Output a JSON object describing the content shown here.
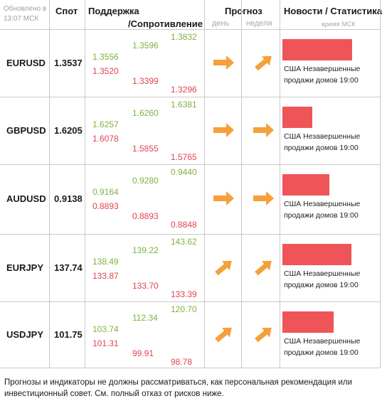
{
  "header": {
    "updated": "Обновлено в 13:07 МСК",
    "spot": "Спот",
    "support": "Поддержка",
    "resistance": "/Сопротивление",
    "forecast": "Прогноз",
    "day": "день",
    "week": "неделя",
    "news": "Новости / Статистика",
    "time_label": "время МСК"
  },
  "rows": [
    {
      "symbol": "EURUSD",
      "spot": "1.3537",
      "c1": [
        "1.3556",
        "1.3520"
      ],
      "c2": [
        "1.3596",
        "1.3399"
      ],
      "c3": [
        "1.3832",
        "1.3296"
      ],
      "day": "right",
      "week": "up-right",
      "news_level": 0.78,
      "news": "США Незавершенные продажи домов 19:00"
    },
    {
      "symbol": "GBPUSD",
      "spot": "1.6205",
      "c1": [
        "1.6257",
        "1.6078"
      ],
      "c2": [
        "1.6260",
        "1.5855"
      ],
      "c3": [
        "1.6381",
        "1.5765"
      ],
      "day": "right",
      "week": "right",
      "news_level": 0.22,
      "news": "США Незавершенные продажи домов 19:00"
    },
    {
      "symbol": "AUDUSD",
      "spot": "0.9138",
      "c1": [
        "0.9164",
        "0.8893"
      ],
      "c2": [
        "0.9280",
        "0.8893"
      ],
      "c3": [
        "0.9440",
        "0.8848"
      ],
      "day": "right",
      "week": "right",
      "news_level": 0.46,
      "news": "США Незавершенные продажи домов 19:00"
    },
    {
      "symbol": "EURJPY",
      "spot": "137.74",
      "c1": [
        "138.49",
        "133.87"
      ],
      "c2": [
        "139.22",
        "133.70"
      ],
      "c3": [
        "143.62",
        "133.39"
      ],
      "day": "up-right",
      "week": "up-right",
      "news_level": 0.77,
      "news": "США Незавершенные продажи домов 19:00"
    },
    {
      "symbol": "USDJPY",
      "spot": "101.75",
      "c1": [
        "103.74",
        "101.31"
      ],
      "c2": [
        "112.34",
        "99.91"
      ],
      "c3": [
        "120.70",
        "98.78"
      ],
      "day": "up-right",
      "week": "up-right",
      "news_level": 0.52,
      "news": "США Незавершенные продажи домов 19:00"
    }
  ],
  "disclaimer": "Прогнозы и индикаторы не должны рассматриваться, как персональная рекомендация или инвестиционный совет. См. полный отказ от рисков ниже.",
  "colors": {
    "support": "#7cb342",
    "resistance": "#e0454e",
    "arrow": "#f5a03a",
    "news_bar": "#ef5459"
  },
  "icons": {
    "right": "arrow-right-icon",
    "up-right": "arrow-up-right-icon"
  }
}
